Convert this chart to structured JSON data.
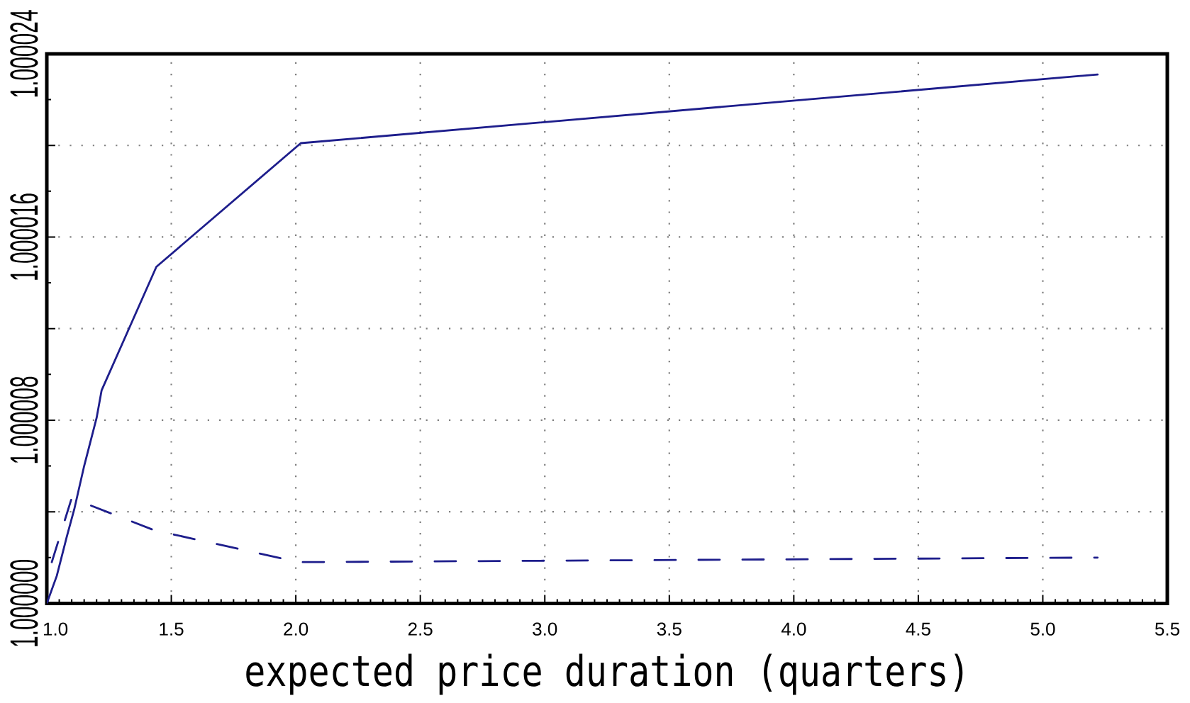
{
  "chart_data": {
    "type": "line",
    "xlabel": "expected price duration (quarters)",
    "xlim": [
      1.0,
      5.5
    ],
    "xticks": [
      {
        "value": 1.0,
        "label": "1.0"
      },
      {
        "value": 1.5,
        "label": "1.5"
      },
      {
        "value": 2.0,
        "label": "2.0"
      },
      {
        "value": 2.5,
        "label": "2.5"
      },
      {
        "value": 3.0,
        "label": "3.0"
      },
      {
        "value": 3.5,
        "label": "3.5"
      },
      {
        "value": 4.0,
        "label": "4.0"
      },
      {
        "value": 4.5,
        "label": "4.5"
      },
      {
        "value": 5.0,
        "label": "5.0"
      },
      {
        "value": 5.5,
        "label": "5.5"
      }
    ],
    "ylim": [
      1.0,
      1.000024
    ],
    "yticks": [
      {
        "value": 1.0,
        "label": "1.000000"
      },
      {
        "value": 1.000004,
        "label": null
      },
      {
        "value": 1.000008,
        "label": "1.000008"
      },
      {
        "value": 1.000012,
        "label": null
      },
      {
        "value": 1.000016,
        "label": "1.000016"
      },
      {
        "value": 1.00002,
        "label": null
      },
      {
        "value": 1.000024,
        "label": "1.000024"
      }
    ],
    "grid": true,
    "series": [
      {
        "color": "#1e1e8c",
        "line_style": "solid",
        "x": [
          1.0,
          1.04,
          1.08,
          1.11,
          1.15,
          1.2,
          1.22,
          1.44,
          2.02,
          5.22
        ],
        "values": [
          1.0,
          1.0000012,
          1.0000029,
          1.0000041,
          1.000006,
          1.0000081,
          1.0000093,
          1.0000147,
          1.0000201,
          1.0000231
        ]
      },
      {
        "color": "#1e1e8c",
        "line_style": "dashed",
        "x": [
          1.02,
          1.1,
          1.43,
          2.01,
          5.22
        ],
        "values": [
          1.0000018,
          1.0000046,
          1.0000032,
          1.0000018,
          1.000002
        ]
      }
    ]
  }
}
